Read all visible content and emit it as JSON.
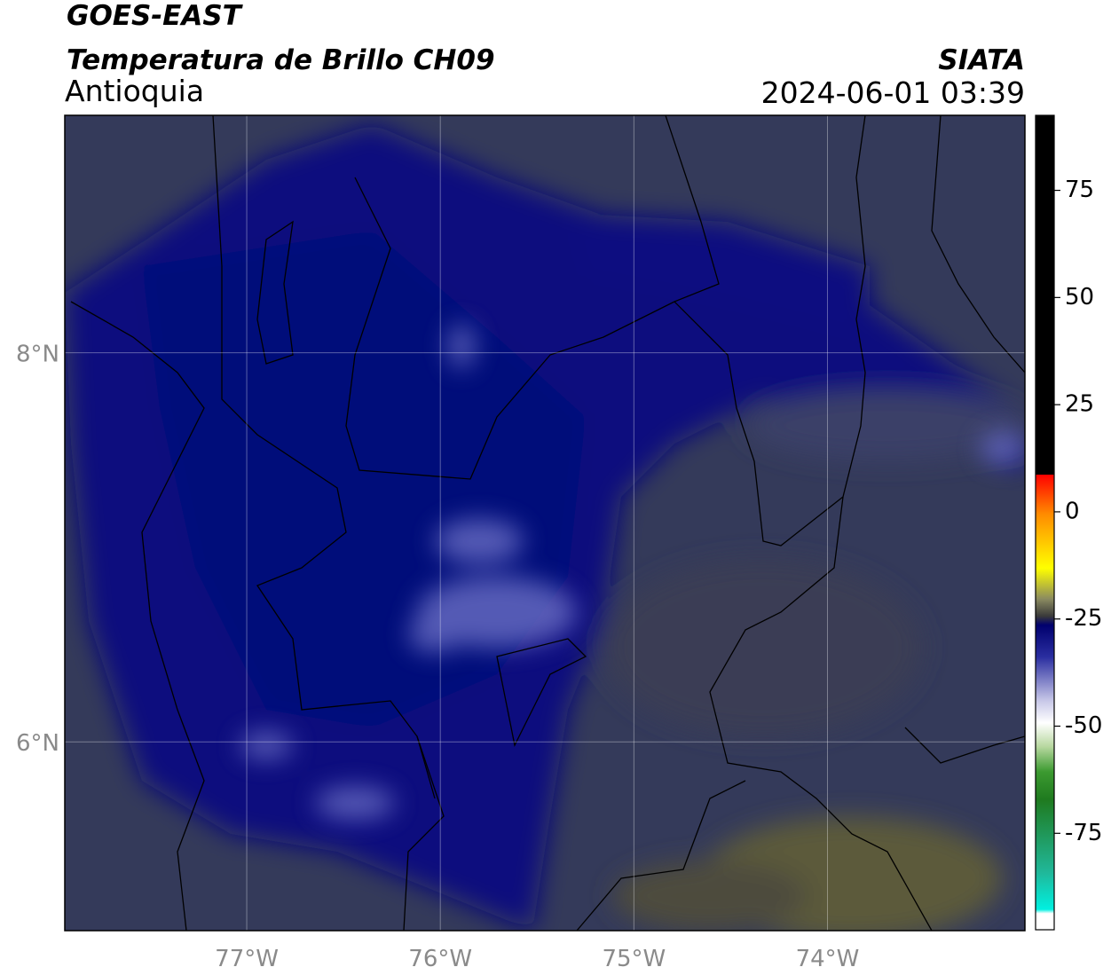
{
  "header": {
    "satellite": "GOES-EAST",
    "product": "Temperatura de Brillo CH09",
    "region": "Antioquia",
    "agency": "SIATA",
    "timestamp": "2024-06-01 03:39"
  },
  "map": {
    "lon_lim": [
      -77.94,
      -72.98
    ],
    "lat_lim": [
      5.03,
      9.22
    ],
    "lat_ticks": [
      {
        "value": 8,
        "label": "8°N"
      },
      {
        "value": 6,
        "label": "6°N"
      }
    ],
    "lon_ticks": [
      {
        "value": -77,
        "label": "77°W"
      },
      {
        "value": -76,
        "label": "76°W"
      },
      {
        "value": -75,
        "label": "75°W"
      },
      {
        "value": -74,
        "label": "74°W"
      }
    ]
  },
  "colorbar": {
    "lim": [
      -97.5,
      92.5
    ],
    "ticks": [
      75,
      50,
      25,
      0,
      -25,
      -50,
      -75
    ]
  }
}
